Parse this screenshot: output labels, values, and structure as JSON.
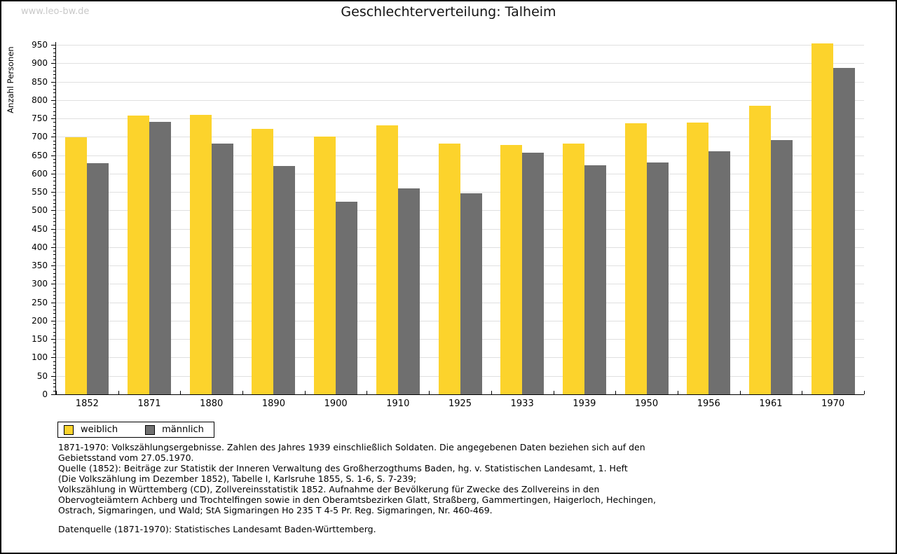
{
  "page": {
    "watermark": "www.leo-bw.de"
  },
  "chart_data": {
    "type": "bar",
    "title": "Geschlechterverteilung: Talheim",
    "ylabel": "Anzahl Personen",
    "xlabel": "",
    "ylim": [
      0,
      950
    ],
    "ytick_step": 50,
    "ytick_minor_step": 10,
    "grid": true,
    "legend_position": "bottom-left",
    "categories": [
      "1852",
      "1871",
      "1880",
      "1890",
      "1900",
      "1910",
      "1925",
      "1933",
      "1939",
      "1950",
      "1956",
      "1961",
      "1970"
    ],
    "series": [
      {
        "name": "weiblich",
        "color": "#fcd32c",
        "values": [
          698,
          758,
          760,
          722,
          700,
          732,
          681,
          677,
          682,
          736,
          738,
          784,
          953
        ]
      },
      {
        "name": "männlich",
        "color": "#6f6f6f",
        "values": [
          628,
          740,
          681,
          620,
          524,
          559,
          547,
          657,
          622,
          630,
          661,
          692,
          887
        ]
      }
    ]
  },
  "footnotes": {
    "notes": "1871-1970: Volkszählungsergebnisse. Zahlen des Jahres 1939 einschließlich Soldaten. Die angegebenen Daten beziehen sich auf den\nGebietsstand vom 27.05.1970.\nQuelle (1852): Beiträge zur Statistik der Inneren Verwaltung des Großherzogthums Baden, hg. v. Statistischen Landesamt, 1. Heft\n(Die Volkszählung im Dezember 1852), Tabelle I, Karlsruhe 1855, S. 1-6, S. 7-239;\nVolkszählung in Württemberg (CD), Zollvereinsstatistik 1852. Aufnahme der Bevölkerung für Zwecke des Zollvereins in den\nObervogteiämtern Achberg und Trochtelfingen sowie in den Oberamtsbezirken Glatt, Straßberg, Gammertingen, Haigerloch, Hechingen,\nOstrach, Sigmaringen, und Wald; StA Sigmaringen Ho 235 T 4-5 Pr. Reg. Sigmaringen, Nr. 460-469.",
    "datasource": "Datenquelle (1871-1970): Statistisches Landesamt Baden-Württemberg."
  },
  "colors": {
    "weiblich": "#fcd32c",
    "maennlich": "#6f6f6f",
    "gridline": "#e0e0e0",
    "watermark": "#c9c9c9",
    "axis": "#000000"
  }
}
